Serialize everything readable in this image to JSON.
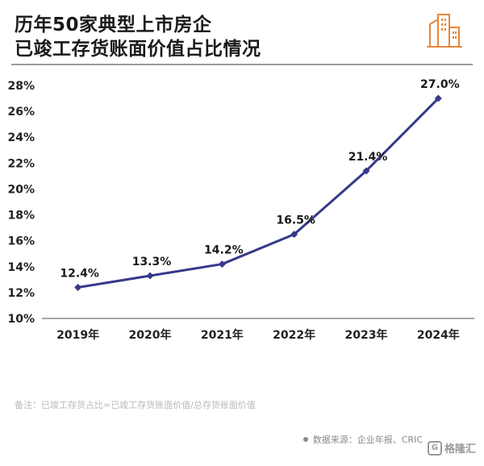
{
  "title": {
    "line1": "历年50家典型上市房企",
    "line2": "已竣工存货账面价值占比情况"
  },
  "logo": {
    "icon": "buildings-icon",
    "color": "#e8873a"
  },
  "chart_data": {
    "type": "line",
    "categories": [
      "2019年",
      "2020年",
      "2021年",
      "2022年",
      "2023年",
      "2024年"
    ],
    "series": [
      {
        "values": [
          12.4,
          13.3,
          14.2,
          16.5,
          21.4,
          27.0
        ],
        "color": "#35398a"
      }
    ],
    "data_labels": [
      "12.4%",
      "13.3%",
      "14.2%",
      "16.5%",
      "21.4%",
      "27.0%"
    ],
    "yticks": [
      "10%",
      "12%",
      "14%",
      "16%",
      "18%",
      "20%",
      "22%",
      "24%",
      "26%",
      "28%"
    ],
    "ylim": [
      10,
      28
    ],
    "grid": false,
    "title": "",
    "xlabel": "",
    "ylabel": ""
  },
  "note": "备注：已竣工存货占比=已竣工存货账面价值/总存货账面价值",
  "source": "数据来源：企业年报、CRIC",
  "brand": {
    "icon": "brand-logo-icon",
    "glyph": "G",
    "text": "格隆汇"
  }
}
